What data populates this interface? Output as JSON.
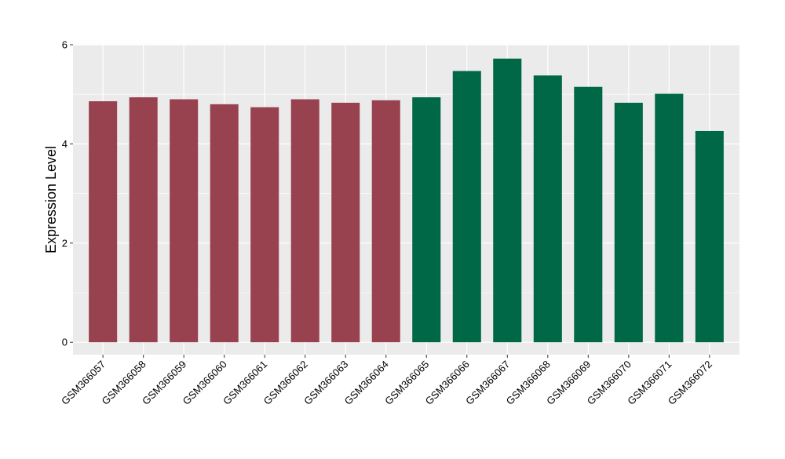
{
  "chart_data": {
    "type": "bar",
    "title": "",
    "xlabel": "",
    "ylabel": "Expression Level",
    "ylim": [
      -0.25,
      6
    ],
    "yticks": [
      0,
      2,
      4,
      6
    ],
    "grid": true,
    "categories": [
      "GSM366057",
      "GSM366058",
      "GSM366059",
      "GSM366060",
      "GSM366061",
      "GSM366062",
      "GSM366063",
      "GSM366064",
      "GSM366065",
      "GSM366066",
      "GSM366067",
      "GSM366068",
      "GSM366069",
      "GSM366070",
      "GSM366071",
      "GSM366072"
    ],
    "values": [
      4.86,
      4.94,
      4.9,
      4.8,
      4.74,
      4.9,
      4.83,
      4.88,
      4.94,
      5.47,
      5.72,
      5.38,
      5.15,
      4.83,
      5.01,
      4.26
    ],
    "bar_colors": [
      "#99424f",
      "#99424f",
      "#99424f",
      "#99424f",
      "#99424f",
      "#99424f",
      "#99424f",
      "#99424f",
      "#006747",
      "#006747",
      "#006747",
      "#006747",
      "#006747",
      "#006747",
      "#006747",
      "#006747"
    ],
    "panel_background": "#ebebeb",
    "grid_color": "#ffffff"
  }
}
